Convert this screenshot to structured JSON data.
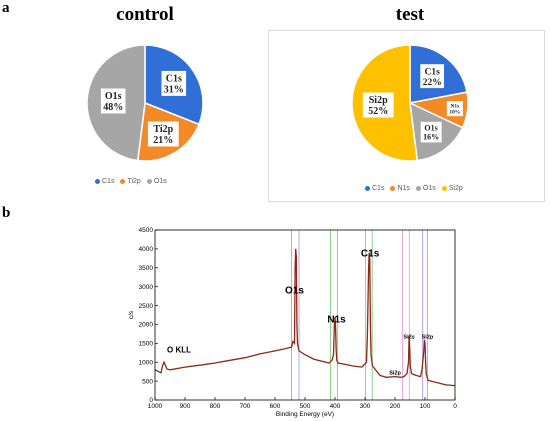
{
  "panel_a_letter": "a",
  "panel_b_letter": "b",
  "chart_data": [
    {
      "type": "pie",
      "title": "control",
      "categories": [
        "C1s",
        "Ti2p",
        "O1s"
      ],
      "values": [
        31,
        21,
        48
      ],
      "slice_labels": [
        "C1s\n31%",
        "Ti2p\n21%",
        "O1s\n48%"
      ],
      "colors": [
        "#2f6fd6",
        "#f28a27",
        "#a6a6a6"
      ],
      "legend": [
        "C1s",
        "Ti2p",
        "O1s"
      ],
      "legend_position": "bottom"
    },
    {
      "type": "pie",
      "title": "test",
      "categories": [
        "C1s",
        "N1s",
        "O1s",
        "Si2p"
      ],
      "values": [
        22,
        10,
        16,
        52
      ],
      "slice_labels": [
        "C1s\n22%",
        "N1s\n10%",
        "O1s\n16%",
        "Si2p\n52%"
      ],
      "colors": [
        "#2f6fd6",
        "#f28a27",
        "#a6a6a6",
        "#ffc000"
      ],
      "legend": [
        "C1s",
        "N1s",
        "O1s",
        "Si2p"
      ],
      "legend_position": "bottom"
    },
    {
      "type": "line",
      "title": "",
      "xlabel": "Binding Energy (eV)",
      "ylabel": "c/s",
      "xlim": [
        1000,
        0
      ],
      "ylim": [
        0,
        4500
      ],
      "x_ticks": [
        1000,
        900,
        800,
        700,
        600,
        500,
        400,
        300,
        200,
        100,
        0
      ],
      "y_ticks": [
        0,
        500,
        1000,
        1500,
        2000,
        2500,
        3000,
        3500,
        4000,
        4500
      ],
      "series": [
        {
          "x": [
            1000,
            990,
            980,
            975,
            970,
            960,
            950,
            900,
            850,
            800,
            750,
            700,
            650,
            600,
            570,
            545,
            540,
            535,
            533,
            531,
            529,
            527,
            525,
            520,
            500,
            470,
            440,
            420,
            410,
            405,
            402,
            400,
            398,
            396,
            394,
            390,
            370,
            340,
            310,
            295,
            292,
            288,
            286,
            284,
            282,
            280,
            275,
            250,
            230,
            200,
            180,
            170,
            160,
            155,
            153,
            151,
            149,
            145,
            130,
            115,
            110,
            104,
            102,
            100,
            98,
            96,
            90,
            70,
            50,
            30,
            0
          ],
          "y": [
            800,
            760,
            720,
            900,
            1000,
            820,
            800,
            870,
            920,
            980,
            1050,
            1120,
            1220,
            1300,
            1350,
            1400,
            1550,
            1500,
            3500,
            4000,
            3800,
            2000,
            1500,
            1300,
            1200,
            1080,
            1020,
            980,
            1050,
            1200,
            2000,
            2200,
            1900,
            1300,
            1050,
            980,
            950,
            900,
            870,
            1000,
            1700,
            3500,
            3900,
            3700,
            2000,
            1200,
            900,
            650,
            600,
            620,
            600,
            620,
            700,
            1000,
            1700,
            1400,
            900,
            700,
            650,
            620,
            800,
            1300,
            1600,
            1500,
            1000,
            700,
            520,
            480,
            440,
            400,
            380
          ],
          "color": "#8a2a14"
        }
      ],
      "vertical_lines": [
        {
          "x": 545,
          "color": "#b6a6e6"
        },
        {
          "x": 520,
          "color": "#b6a6e6"
        },
        {
          "x": 415,
          "color": "#8fd08f"
        },
        {
          "x": 392,
          "color": "#8fd08f"
        },
        {
          "x": 298,
          "color": "#8fd08f"
        },
        {
          "x": 276,
          "color": "#8fd08f"
        },
        {
          "x": 175,
          "color": "#f0a8e0"
        },
        {
          "x": 152,
          "color": "#f0a8e0"
        },
        {
          "x": 108,
          "color": "#b6a6e6"
        },
        {
          "x": 92,
          "color": "#b6a6e6"
        }
      ],
      "annotations": [
        {
          "text": "O KLL",
          "x": 960,
          "y": 1260
        },
        {
          "text": "O1s",
          "x": 535,
          "y": 2820
        },
        {
          "text": "N1s",
          "x": 395,
          "y": 2050
        },
        {
          "text": "C1s",
          "x": 283,
          "y": 3800
        },
        {
          "text": "Si2p",
          "x": 200,
          "y": 680
        },
        {
          "text": "Si2s",
          "x": 153,
          "y": 1630
        },
        {
          "text": "Si2p",
          "x": 92,
          "y": 1630
        }
      ]
    }
  ]
}
